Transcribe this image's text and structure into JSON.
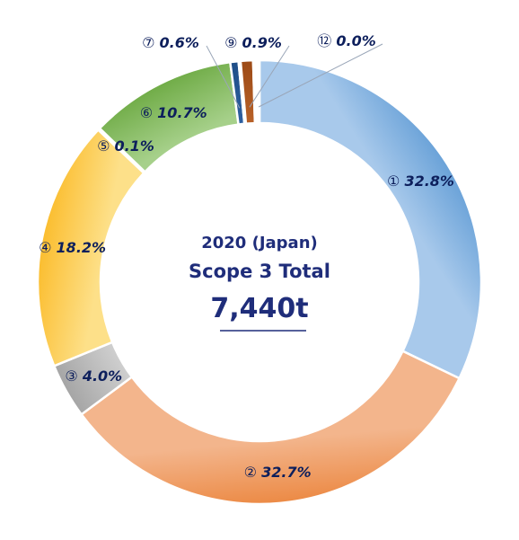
{
  "center": {
    "year_label": "2020 (Japan)",
    "title": "Scope 3 Total",
    "total": "7,440t"
  },
  "chart_data": {
    "type": "pie",
    "variant": "donut",
    "title": "",
    "start_angle_deg": 0,
    "direction": "clockwise",
    "slices": [
      {
        "id": "1",
        "marker": "①",
        "label": "32.8%",
        "value": 32.8,
        "color": "#6aa2d8",
        "color_light": "#a8c9eb"
      },
      {
        "id": "2",
        "marker": "②",
        "label": "32.7%",
        "value": 32.7,
        "color": "#ec8a45",
        "color_light": "#f3b58c"
      },
      {
        "id": "3",
        "marker": "③",
        "label": "4.0%",
        "value": 4.0,
        "color": "#a5a5a5",
        "color_light": "#cfcfcf"
      },
      {
        "id": "4",
        "marker": "④",
        "label": "18.2%",
        "value": 18.2,
        "color": "#fbbd2e",
        "color_light": "#fde089"
      },
      {
        "id": "5",
        "marker": "⑤",
        "label": "0.1%",
        "value": 0.1,
        "color": "#3e73b9",
        "color_light": "#3e73b9"
      },
      {
        "id": "6",
        "marker": "⑥",
        "label": "10.7%",
        "value": 10.7,
        "color": "#70ac47",
        "color_light": "#a6d08a"
      },
      {
        "id": "7",
        "marker": "⑦",
        "label": "0.6%",
        "value": 0.6,
        "color": "#1f4e88",
        "color_light": "#2d5fa0"
      },
      {
        "id": "8",
        "marker": "",
        "label": "",
        "value": 0.0,
        "color": "#9ab9e0",
        "color_light": "#9ab9e0"
      },
      {
        "id": "9",
        "marker": "⑨",
        "label": "0.9%",
        "value": 0.9,
        "color": "#9c4a16",
        "color_light": "#b86128"
      },
      {
        "id": "10",
        "marker": "",
        "label": "",
        "value": 0.0,
        "color": "#ec8a45",
        "color_light": "#ec8a45"
      },
      {
        "id": "11",
        "marker": "",
        "label": "",
        "value": 0.0,
        "color": "#6aa2d8",
        "color_light": "#6aa2d8"
      },
      {
        "id": "12",
        "marker": "⑫",
        "label": "0.0%",
        "value": 0.0,
        "color": "#ec8a45",
        "color_light": "#f3b58c"
      }
    ]
  }
}
